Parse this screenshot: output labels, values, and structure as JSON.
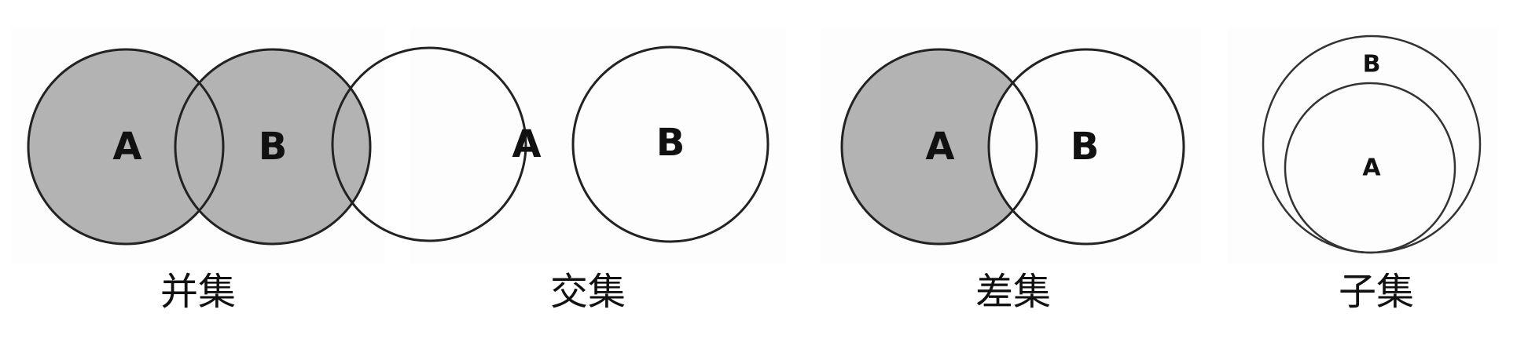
{
  "colors": {
    "shaded": "#b3b3b3",
    "outline": "#222222",
    "background": "#ffffff"
  },
  "diagrams": [
    {
      "caption": "并集",
      "shading": "union",
      "set_a": "A",
      "set_b": "B"
    },
    {
      "caption": "交集",
      "shading": "intersection",
      "set_a": "A",
      "set_b": "B"
    },
    {
      "caption": "差集",
      "shading": "difference",
      "set_a": "A",
      "set_b": "B"
    },
    {
      "caption": "子集",
      "shading": "none",
      "set_a": "A",
      "set_b": "B"
    }
  ]
}
